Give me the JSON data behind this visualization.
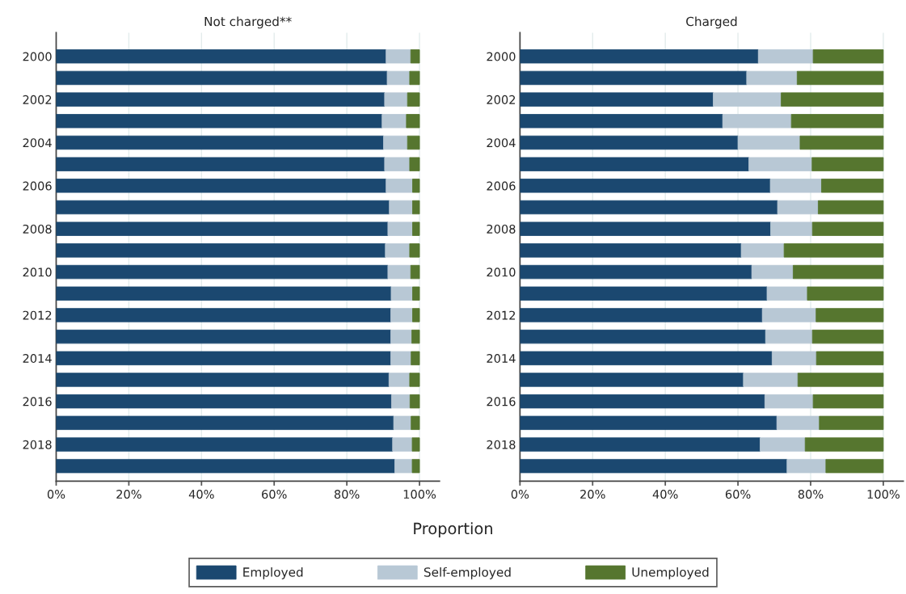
{
  "chart_data": [
    {
      "type": "bar",
      "orientation": "horizontal",
      "stacked": true,
      "title": "Not charged**",
      "xlabel": "Proportion",
      "categories": [
        "2000",
        null,
        "2002",
        null,
        "2004",
        null,
        "2006",
        null,
        "2008",
        null,
        "2010",
        null,
        "2012",
        null,
        "2014",
        null,
        "2016",
        null,
        "2018",
        null
      ],
      "series": [
        {
          "name": "Employed",
          "color": "#1b4870",
          "values": [
            90.8,
            91.1,
            90.4,
            89.7,
            90.1,
            90.4,
            90.8,
            91.7,
            91.3,
            90.6,
            91.3,
            92.2,
            92.1,
            92.1,
            92.1,
            91.6,
            92.3,
            92.9,
            92.6,
            93.2
          ]
        },
        {
          "name": "Self-employed",
          "color": "#b8c8d5",
          "values": [
            6.8,
            6.2,
            6.3,
            6.7,
            6.6,
            6.9,
            7.3,
            6.4,
            6.8,
            6.7,
            6.3,
            5.9,
            6.0,
            5.8,
            5.6,
            5.7,
            5.1,
            4.8,
            5.4,
            4.8
          ]
        },
        {
          "name": "Unemployed",
          "color": "#56762f",
          "values": [
            2.4,
            2.7,
            3.3,
            3.6,
            3.3,
            2.7,
            1.9,
            1.9,
            1.9,
            2.7,
            2.4,
            1.9,
            1.9,
            2.1,
            2.3,
            2.7,
            2.6,
            2.3,
            2.0,
            2.0
          ]
        }
      ],
      "xlim": [
        0,
        105.5
      ],
      "xticks": [
        {
          "value": 0,
          "label": "0%"
        },
        {
          "value": 20,
          "label": "20%"
        },
        {
          "value": 40,
          "label": "40%"
        },
        {
          "value": 60,
          "label": "60%"
        },
        {
          "value": 80,
          "label": "80%"
        },
        {
          "value": 100,
          "label": "100%"
        }
      ],
      "grid": "x",
      "legend": "bottom"
    },
    {
      "type": "bar",
      "orientation": "horizontal",
      "stacked": true,
      "title": "Charged",
      "categories": [
        "2000",
        null,
        "2002",
        null,
        "2004",
        null,
        "2006",
        null,
        "2008",
        null,
        "2010",
        null,
        "2012",
        null,
        "2014",
        null,
        "2016",
        null,
        "2018",
        null
      ],
      "series": [
        {
          "color": "#1b4870",
          "values": [
            65.6,
            62.4,
            53.2,
            55.8,
            60.0,
            63.0,
            68.9,
            70.9,
            69.0,
            60.9,
            63.8,
            68.0,
            66.7,
            67.6,
            69.4,
            61.5,
            67.4,
            70.7,
            66.1,
            73.5
          ]
        },
        {
          "color": "#b8c8d5",
          "values": [
            15.1,
            13.9,
            18.7,
            18.9,
            17.1,
            17.4,
            14.1,
            11.2,
            11.5,
            11.8,
            11.4,
            11.1,
            14.8,
            12.9,
            12.2,
            15.0,
            13.3,
            11.7,
            12.4,
            10.7
          ]
        },
        {
          "color": "#56762f",
          "values": [
            19.3,
            23.7,
            28.1,
            25.3,
            22.9,
            19.6,
            17.0,
            17.9,
            19.5,
            27.3,
            24.8,
            20.9,
            18.5,
            19.5,
            18.4,
            23.5,
            19.3,
            17.6,
            21.5,
            15.8
          ]
        }
      ],
      "xlim": [
        0,
        105.5
      ],
      "xticks": [
        {
          "value": 0,
          "label": "0%"
        },
        {
          "value": 20,
          "label": "20%"
        },
        {
          "value": 40,
          "label": "40%"
        },
        {
          "value": 60,
          "label": "60%"
        },
        {
          "value": 80,
          "label": "80%"
        },
        {
          "value": 100,
          "label": "100%"
        }
      ],
      "grid": "x"
    }
  ]
}
